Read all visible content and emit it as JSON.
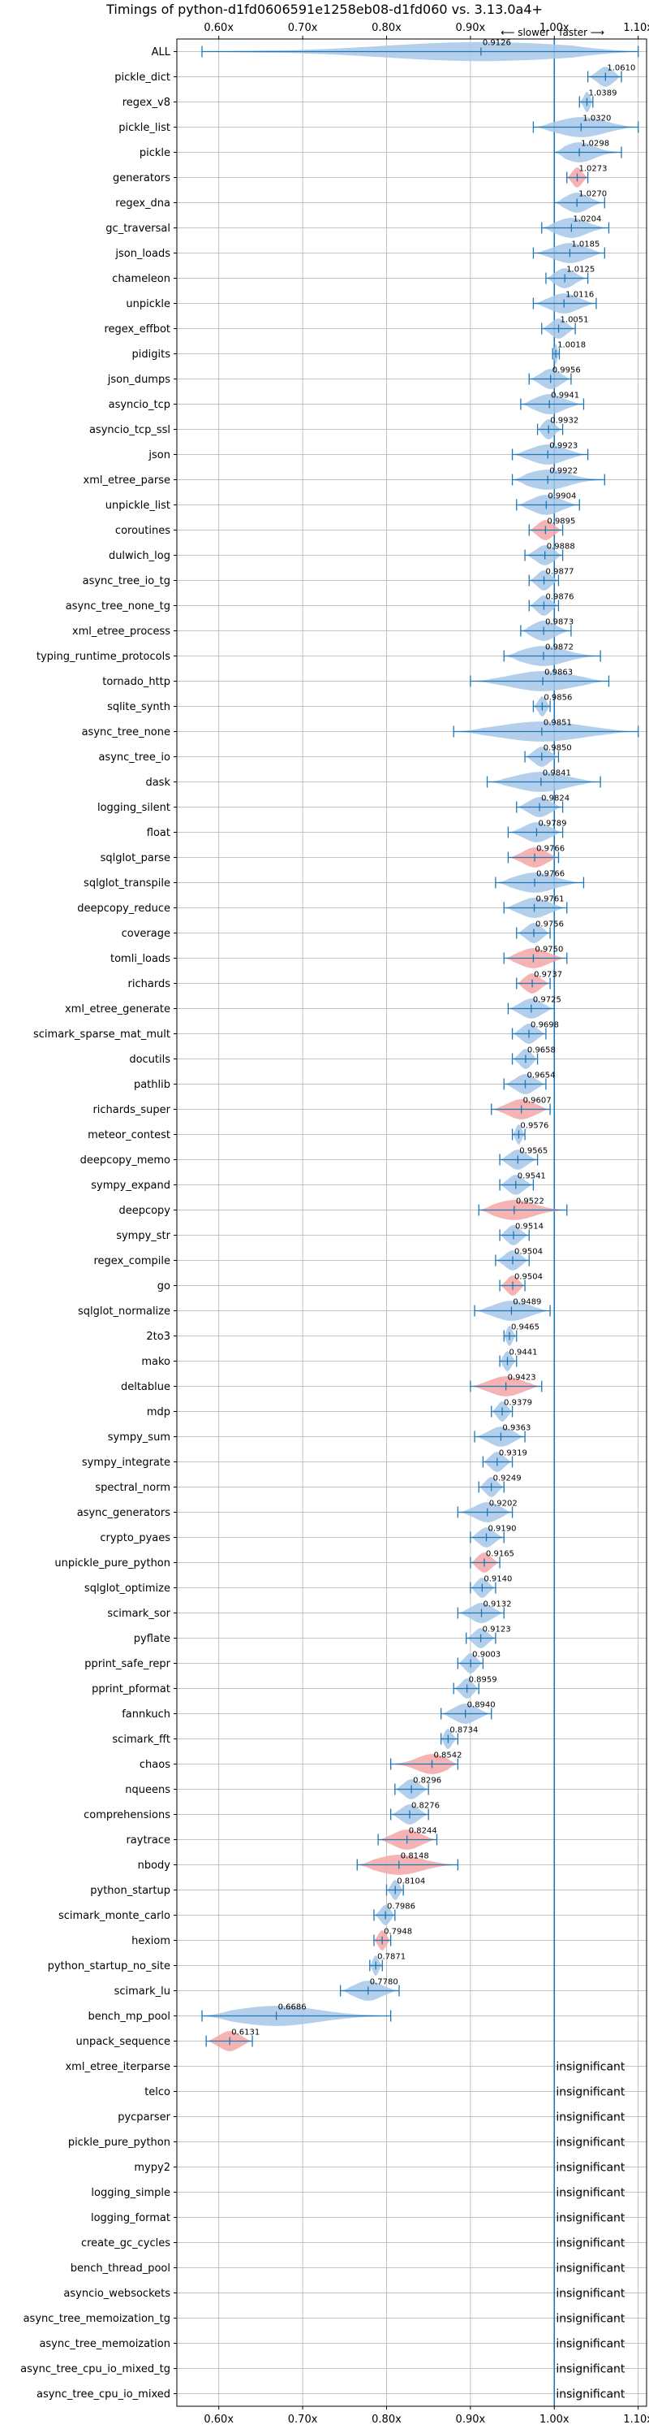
{
  "chart_data": {
    "type": "violin",
    "title": "Timings of python-d1fd0606591e1258eb08-d1fd060 vs. 3.13.0a4+",
    "direction_left": "⟵ slower",
    "direction_right": "faster ⟶",
    "xlim": [
      0.55,
      1.11
    ],
    "xticks": [
      0.6,
      0.7,
      0.8,
      0.9,
      1.0,
      1.1
    ],
    "xtick_labels": [
      "0.60x",
      "0.70x",
      "0.80x",
      "0.90x",
      "1.00x",
      "1.10x"
    ],
    "grid": true,
    "reference_line": 1.0,
    "colors": {
      "faster": "#a7c7e7",
      "slower": "#f4a6a6",
      "line": "#1f77b4",
      "grid": "#b0b0b0"
    },
    "insignificant_text": "insignificant",
    "benchmarks": [
      {
        "name": "ALL",
        "value": 0.9126,
        "low": 0.58,
        "high": 1.1,
        "kind": "all"
      },
      {
        "name": "pickle_dict",
        "value": 1.061,
        "label": "1.0610",
        "low": 1.04,
        "high": 1.08,
        "kind": "faster"
      },
      {
        "name": "regex_v8",
        "value": 1.0389,
        "label": "1.0389",
        "low": 1.03,
        "high": 1.046,
        "kind": "faster"
      },
      {
        "name": "pickle_list",
        "value": 1.032,
        "label": "1.0320",
        "low": 0.975,
        "high": 1.1,
        "kind": "faster"
      },
      {
        "name": "pickle",
        "value": 1.0298,
        "label": "1.0298",
        "low": 1.0,
        "high": 1.08,
        "kind": "faster"
      },
      {
        "name": "generators",
        "value": 1.0273,
        "label": "1.0273",
        "low": 1.015,
        "high": 1.04,
        "kind": "slower"
      },
      {
        "name": "regex_dna",
        "value": 1.027,
        "label": "1.0270",
        "low": 1.0,
        "high": 1.06,
        "kind": "faster"
      },
      {
        "name": "gc_traversal",
        "value": 1.0204,
        "label": "1.0204",
        "low": 0.985,
        "high": 1.065,
        "kind": "faster"
      },
      {
        "name": "json_loads",
        "value": 1.0185,
        "label": "1.0185",
        "low": 0.975,
        "high": 1.06,
        "kind": "faster"
      },
      {
        "name": "chameleon",
        "value": 1.0125,
        "label": "1.0125",
        "low": 0.99,
        "high": 1.04,
        "kind": "faster"
      },
      {
        "name": "unpickle",
        "value": 1.0116,
        "label": "1.0116",
        "low": 0.975,
        "high": 1.05,
        "kind": "faster"
      },
      {
        "name": "regex_effbot",
        "value": 1.0051,
        "label": "1.0051",
        "low": 0.985,
        "high": 1.025,
        "kind": "faster"
      },
      {
        "name": "pidigits",
        "value": 1.0018,
        "label": "1.0018",
        "low": 0.998,
        "high": 1.006,
        "kind": "faster"
      },
      {
        "name": "json_dumps",
        "value": 0.9956,
        "label": "0.9956",
        "low": 0.97,
        "high": 1.02,
        "kind": "faster"
      },
      {
        "name": "asyncio_tcp",
        "value": 0.9941,
        "label": "0.9941",
        "low": 0.96,
        "high": 1.035,
        "kind": "faster"
      },
      {
        "name": "asyncio_tcp_ssl",
        "value": 0.9932,
        "label": "0.9932",
        "low": 0.98,
        "high": 1.01,
        "kind": "faster"
      },
      {
        "name": "json",
        "value": 0.9923,
        "label": "0.9923",
        "low": 0.95,
        "high": 1.04,
        "kind": "faster"
      },
      {
        "name": "xml_etree_parse",
        "value": 0.9922,
        "label": "0.9922",
        "low": 0.95,
        "high": 1.06,
        "kind": "faster"
      },
      {
        "name": "unpickle_list",
        "value": 0.9904,
        "label": "0.9904",
        "low": 0.955,
        "high": 1.03,
        "kind": "faster"
      },
      {
        "name": "coroutines",
        "value": 0.9895,
        "label": "0.9895",
        "low": 0.97,
        "high": 1.01,
        "kind": "slower"
      },
      {
        "name": "dulwich_log",
        "value": 0.9888,
        "label": "0.9888",
        "low": 0.965,
        "high": 1.01,
        "kind": "faster"
      },
      {
        "name": "async_tree_io_tg",
        "value": 0.9877,
        "label": "0.9877",
        "low": 0.97,
        "high": 1.005,
        "kind": "faster"
      },
      {
        "name": "async_tree_none_tg",
        "value": 0.9876,
        "label": "0.9876",
        "low": 0.97,
        "high": 1.005,
        "kind": "faster"
      },
      {
        "name": "xml_etree_process",
        "value": 0.9873,
        "label": "0.9873",
        "low": 0.96,
        "high": 1.02,
        "kind": "faster"
      },
      {
        "name": "typing_runtime_protocols",
        "value": 0.9872,
        "label": "0.9872",
        "low": 0.94,
        "high": 1.055,
        "kind": "faster"
      },
      {
        "name": "tornado_http",
        "value": 0.9863,
        "label": "0.9863",
        "low": 0.9,
        "high": 1.065,
        "kind": "faster"
      },
      {
        "name": "sqlite_synth",
        "value": 0.9856,
        "label": "0.9856",
        "low": 0.975,
        "high": 0.995,
        "kind": "faster"
      },
      {
        "name": "async_tree_none",
        "value": 0.9851,
        "label": "0.9851",
        "low": 0.88,
        "high": 1.1,
        "kind": "faster"
      },
      {
        "name": "async_tree_io",
        "value": 0.985,
        "label": "0.9850",
        "low": 0.965,
        "high": 1.005,
        "kind": "faster"
      },
      {
        "name": "dask",
        "value": 0.9841,
        "label": "0.9841",
        "low": 0.92,
        "high": 1.055,
        "kind": "faster"
      },
      {
        "name": "logging_silent",
        "value": 0.9824,
        "label": "0.9824",
        "low": 0.955,
        "high": 1.01,
        "kind": "faster"
      },
      {
        "name": "float",
        "value": 0.9789,
        "label": "0.9789",
        "low": 0.945,
        "high": 1.01,
        "kind": "faster"
      },
      {
        "name": "sqlglot_parse",
        "value": 0.9766,
        "label": "0.9766",
        "low": 0.945,
        "high": 1.005,
        "kind": "slower"
      },
      {
        "name": "sqlglot_transpile",
        "value": 0.9766,
        "label": "0.9766",
        "low": 0.93,
        "high": 1.035,
        "kind": "faster"
      },
      {
        "name": "deepcopy_reduce",
        "value": 0.9761,
        "label": "0.9761",
        "low": 0.94,
        "high": 1.015,
        "kind": "faster"
      },
      {
        "name": "coverage",
        "value": 0.9756,
        "label": "0.9756",
        "low": 0.955,
        "high": 0.995,
        "kind": "faster"
      },
      {
        "name": "tomli_loads",
        "value": 0.975,
        "label": "0.9750",
        "low": 0.94,
        "high": 1.015,
        "kind": "slower"
      },
      {
        "name": "richards",
        "value": 0.9737,
        "label": "0.9737",
        "low": 0.955,
        "high": 0.995,
        "kind": "slower"
      },
      {
        "name": "xml_etree_generate",
        "value": 0.9725,
        "label": "0.9725",
        "low": 0.945,
        "high": 1.0,
        "kind": "faster"
      },
      {
        "name": "scimark_sparse_mat_mult",
        "value": 0.9698,
        "label": "0.9698",
        "low": 0.95,
        "high": 0.99,
        "kind": "faster"
      },
      {
        "name": "docutils",
        "value": 0.9658,
        "label": "0.9658",
        "low": 0.95,
        "high": 0.98,
        "kind": "faster"
      },
      {
        "name": "pathlib",
        "value": 0.9654,
        "label": "0.9654",
        "low": 0.94,
        "high": 0.99,
        "kind": "faster"
      },
      {
        "name": "richards_super",
        "value": 0.9607,
        "label": "0.9607",
        "low": 0.925,
        "high": 0.995,
        "kind": "slower"
      },
      {
        "name": "meteor_contest",
        "value": 0.9576,
        "label": "0.9576",
        "low": 0.95,
        "high": 0.965,
        "kind": "faster"
      },
      {
        "name": "deepcopy_memo",
        "value": 0.9565,
        "label": "0.9565",
        "low": 0.935,
        "high": 0.98,
        "kind": "faster"
      },
      {
        "name": "sympy_expand",
        "value": 0.9541,
        "label": "0.9541",
        "low": 0.935,
        "high": 0.975,
        "kind": "faster"
      },
      {
        "name": "deepcopy",
        "value": 0.9522,
        "label": "0.9522",
        "low": 0.91,
        "high": 1.015,
        "kind": "slower"
      },
      {
        "name": "sympy_str",
        "value": 0.9514,
        "label": "0.9514",
        "low": 0.935,
        "high": 0.97,
        "kind": "faster"
      },
      {
        "name": "regex_compile",
        "value": 0.9504,
        "label": "0.9504",
        "low": 0.93,
        "high": 0.97,
        "kind": "faster"
      },
      {
        "name": "go",
        "value": 0.9504,
        "label": "0.9504",
        "low": 0.935,
        "high": 0.965,
        "kind": "slower"
      },
      {
        "name": "sqlglot_normalize",
        "value": 0.9489,
        "label": "0.9489",
        "low": 0.905,
        "high": 0.995,
        "kind": "faster"
      },
      {
        "name": "2to3",
        "value": 0.9465,
        "label": "0.9465",
        "low": 0.94,
        "high": 0.955,
        "kind": "faster"
      },
      {
        "name": "mako",
        "value": 0.9441,
        "label": "0.9441",
        "low": 0.935,
        "high": 0.955,
        "kind": "faster"
      },
      {
        "name": "deltablue",
        "value": 0.9423,
        "label": "0.9423",
        "low": 0.9,
        "high": 0.985,
        "kind": "slower"
      },
      {
        "name": "mdp",
        "value": 0.9379,
        "label": "0.9379",
        "low": 0.925,
        "high": 0.95,
        "kind": "faster"
      },
      {
        "name": "sympy_sum",
        "value": 0.9363,
        "label": "0.9363",
        "low": 0.905,
        "high": 0.965,
        "kind": "faster"
      },
      {
        "name": "sympy_integrate",
        "value": 0.9319,
        "label": "0.9319",
        "low": 0.915,
        "high": 0.95,
        "kind": "faster"
      },
      {
        "name": "spectral_norm",
        "value": 0.9249,
        "label": "0.9249",
        "low": 0.91,
        "high": 0.94,
        "kind": "faster"
      },
      {
        "name": "async_generators",
        "value": 0.9202,
        "label": "0.9202",
        "low": 0.885,
        "high": 0.95,
        "kind": "faster"
      },
      {
        "name": "crypto_pyaes",
        "value": 0.919,
        "label": "0.9190",
        "low": 0.9,
        "high": 0.94,
        "kind": "faster"
      },
      {
        "name": "unpickle_pure_python",
        "value": 0.9165,
        "label": "0.9165",
        "low": 0.9,
        "high": 0.935,
        "kind": "slower"
      },
      {
        "name": "sqlglot_optimize",
        "value": 0.914,
        "label": "0.9140",
        "low": 0.9,
        "high": 0.93,
        "kind": "faster"
      },
      {
        "name": "scimark_sor",
        "value": 0.9132,
        "label": "0.9132",
        "low": 0.885,
        "high": 0.94,
        "kind": "faster"
      },
      {
        "name": "pyflate",
        "value": 0.9123,
        "label": "0.9123",
        "low": 0.895,
        "high": 0.93,
        "kind": "faster"
      },
      {
        "name": "pprint_safe_repr",
        "value": 0.9003,
        "label": "0.9003",
        "low": 0.885,
        "high": 0.915,
        "kind": "faster"
      },
      {
        "name": "pprint_pformat",
        "value": 0.8959,
        "label": "0.8959",
        "low": 0.88,
        "high": 0.91,
        "kind": "faster"
      },
      {
        "name": "fannkuch",
        "value": 0.894,
        "label": "0.8940",
        "low": 0.865,
        "high": 0.925,
        "kind": "faster"
      },
      {
        "name": "scimark_fft",
        "value": 0.8734,
        "label": "0.8734",
        "low": 0.865,
        "high": 0.885,
        "kind": "faster"
      },
      {
        "name": "chaos",
        "value": 0.8542,
        "label": "0.8542",
        "low": 0.805,
        "high": 0.885,
        "kind": "slower"
      },
      {
        "name": "nqueens",
        "value": 0.8296,
        "label": "0.8296",
        "low": 0.81,
        "high": 0.85,
        "kind": "faster"
      },
      {
        "name": "comprehensions",
        "value": 0.8276,
        "label": "0.8276",
        "low": 0.805,
        "high": 0.85,
        "kind": "faster"
      },
      {
        "name": "raytrace",
        "value": 0.8244,
        "label": "0.8244",
        "low": 0.79,
        "high": 0.86,
        "kind": "slower"
      },
      {
        "name": "nbody",
        "value": 0.8148,
        "label": "0.8148",
        "low": 0.765,
        "high": 0.885,
        "kind": "slower"
      },
      {
        "name": "python_startup",
        "value": 0.8104,
        "label": "0.8104",
        "low": 0.8,
        "high": 0.82,
        "kind": "faster"
      },
      {
        "name": "scimark_monte_carlo",
        "value": 0.7986,
        "label": "0.7986",
        "low": 0.785,
        "high": 0.81,
        "kind": "faster"
      },
      {
        "name": "hexiom",
        "value": 0.7948,
        "label": "0.7948",
        "low": 0.785,
        "high": 0.805,
        "kind": "slower"
      },
      {
        "name": "python_startup_no_site",
        "value": 0.7871,
        "label": "0.7871",
        "low": 0.78,
        "high": 0.795,
        "kind": "faster"
      },
      {
        "name": "scimark_lu",
        "value": 0.778,
        "label": "0.7780",
        "low": 0.745,
        "high": 0.815,
        "kind": "faster"
      },
      {
        "name": "bench_mp_pool",
        "value": 0.6686,
        "label": "0.6686",
        "low": 0.58,
        "high": 0.805,
        "kind": "faster"
      },
      {
        "name": "unpack_sequence",
        "value": 0.6131,
        "label": "0.6131",
        "low": 0.585,
        "high": 0.64,
        "kind": "slower"
      },
      {
        "name": "xml_etree_iterparse",
        "kind": "insignificant"
      },
      {
        "name": "telco",
        "kind": "insignificant"
      },
      {
        "name": "pycparser",
        "kind": "insignificant"
      },
      {
        "name": "pickle_pure_python",
        "kind": "insignificant"
      },
      {
        "name": "mypy2",
        "kind": "insignificant"
      },
      {
        "name": "logging_simple",
        "kind": "insignificant"
      },
      {
        "name": "logging_format",
        "kind": "insignificant"
      },
      {
        "name": "create_gc_cycles",
        "kind": "insignificant"
      },
      {
        "name": "bench_thread_pool",
        "kind": "insignificant"
      },
      {
        "name": "asyncio_websockets",
        "kind": "insignificant"
      },
      {
        "name": "async_tree_memoization_tg",
        "kind": "insignificant"
      },
      {
        "name": "async_tree_memoization",
        "kind": "insignificant"
      },
      {
        "name": "async_tree_cpu_io_mixed_tg",
        "kind": "insignificant"
      },
      {
        "name": "async_tree_cpu_io_mixed",
        "kind": "insignificant"
      }
    ]
  }
}
